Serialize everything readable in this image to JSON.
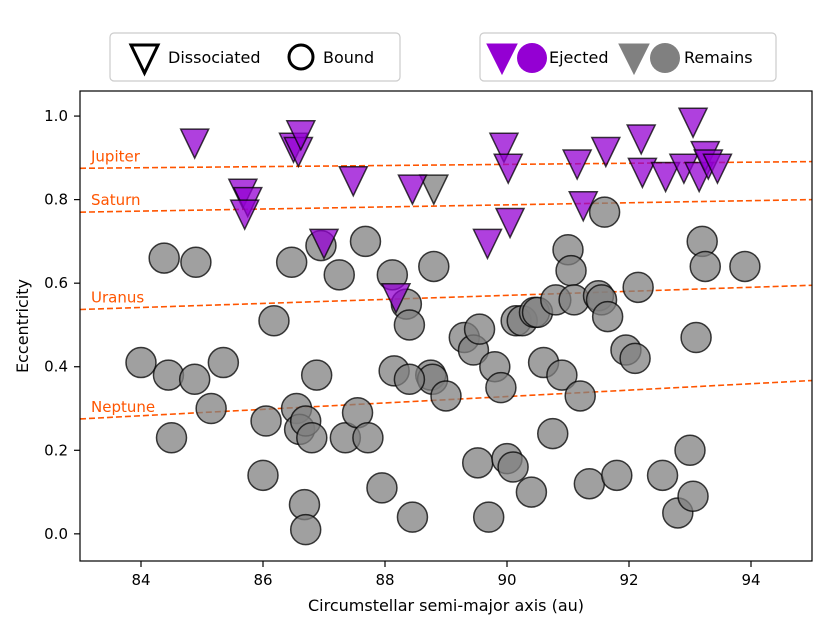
{
  "chart_data": {
    "type": "scatter",
    "xlabel": "Circumstellar semi-major axis (au)",
    "ylabel": "Eccentricity",
    "xlim": [
      83.0,
      95.0
    ],
    "ylim": [
      -0.065,
      1.06
    ],
    "xticks": [
      84,
      86,
      88,
      90,
      92,
      94
    ],
    "xtick_labels": [
      "84",
      "86",
      "88",
      "90",
      "92",
      "94"
    ],
    "yticks": [
      0.0,
      0.2,
      0.4,
      0.6,
      0.8,
      1.0
    ],
    "ytick_labels": [
      "0.0",
      "0.2",
      "0.4",
      "0.6",
      "0.8",
      "1.0"
    ],
    "grid": false,
    "colors": {
      "ejected": "#9400D3",
      "remains": "#808080",
      "planet_line": "#FF5500",
      "edge": "#000000"
    },
    "legends": [
      {
        "placement": "top-left",
        "entries": [
          {
            "marker": "triangle-down-open",
            "label": "Dissociated"
          },
          {
            "marker": "circle-open",
            "label": "Bound"
          }
        ]
      },
      {
        "placement": "top-right",
        "entries": [
          {
            "marker": "purple-pair",
            "label": "Ejected"
          },
          {
            "marker": "grey-pair",
            "label": "Remains"
          }
        ]
      }
    ],
    "planet_lines": [
      {
        "name": "Jupiter",
        "x": [
          83.0,
          95.0
        ],
        "y": [
          0.875,
          0.891
        ]
      },
      {
        "name": "Saturn",
        "x": [
          83.0,
          95.0
        ],
        "y": [
          0.77,
          0.8
        ]
      },
      {
        "name": "Uranus",
        "x": [
          83.0,
          95.0
        ],
        "y": [
          0.537,
          0.595
        ]
      },
      {
        "name": "Neptune",
        "x": [
          83.0,
          95.0
        ],
        "y": [
          0.275,
          0.367
        ]
      }
    ],
    "series": [
      {
        "name": "Bound - Remains",
        "marker": "circle",
        "color": "grey",
        "x": [
          84.0,
          84.38,
          84.45,
          84.9,
          84.88,
          84.5,
          85.15,
          85.35,
          86.0,
          86.05,
          86.18,
          86.47,
          86.55,
          86.6,
          86.7,
          86.68,
          86.7,
          86.8,
          86.88,
          86.95,
          87.25,
          87.35,
          87.55,
          87.68,
          87.72,
          87.95,
          88.12,
          88.15,
          88.35,
          88.4,
          88.75,
          88.78,
          88.8,
          88.4,
          88.45,
          89.0,
          89.3,
          89.45,
          89.52,
          89.55,
          89.7,
          89.8,
          89.9,
          90.0,
          90.1,
          90.15,
          90.25,
          90.4,
          90.45,
          90.5,
          90.6,
          90.75,
          90.8,
          90.9,
          91.0,
          91.05,
          91.1,
          91.2,
          91.35,
          91.5,
          91.55,
          91.6,
          91.65,
          91.8,
          91.95,
          92.1,
          92.15,
          92.55,
          92.8,
          93.0,
          93.05,
          93.1,
          93.2,
          93.25,
          93.9
        ],
        "y": [
          0.41,
          0.66,
          0.38,
          0.65,
          0.37,
          0.23,
          0.3,
          0.41,
          0.14,
          0.27,
          0.51,
          0.65,
          0.3,
          0.25,
          0.27,
          0.07,
          0.01,
          0.23,
          0.38,
          0.69,
          0.62,
          0.23,
          0.29,
          0.7,
          0.23,
          0.11,
          0.62,
          0.39,
          0.55,
          0.5,
          0.38,
          0.37,
          0.64,
          0.37,
          0.04,
          0.33,
          0.47,
          0.44,
          0.17,
          0.49,
          0.04,
          0.4,
          0.35,
          0.18,
          0.16,
          0.51,
          0.51,
          0.1,
          0.53,
          0.53,
          0.41,
          0.24,
          0.56,
          0.38,
          0.68,
          0.63,
          0.56,
          0.33,
          0.12,
          0.57,
          0.56,
          0.77,
          0.52,
          0.14,
          0.44,
          0.42,
          0.59,
          0.14,
          0.05,
          0.2,
          0.09,
          0.47,
          0.7,
          0.64,
          0.64
        ]
      },
      {
        "name": "Dissociated - Remains",
        "marker": "triangle-down",
        "color": "grey",
        "x": [
          88.8
        ],
        "y": [
          0.83
        ]
      },
      {
        "name": "Dissociated - Ejected",
        "marker": "triangle-down",
        "color": "purple",
        "x": [
          84.88,
          85.67,
          85.75,
          85.7,
          86.5,
          86.58,
          86.62,
          87.0,
          87.48,
          88.45,
          88.18,
          89.68,
          90.05,
          89.95,
          90.02,
          91.15,
          91.25,
          91.62,
          92.2,
          92.22,
          92.6,
          92.9,
          93.05,
          93.15,
          93.25,
          93.3,
          93.45
        ],
        "y": [
          0.94,
          0.82,
          0.8,
          0.77,
          0.93,
          0.92,
          0.96,
          0.7,
          0.85,
          0.83,
          0.57,
          0.7,
          0.75,
          0.93,
          0.88,
          0.89,
          0.79,
          0.92,
          0.95,
          0.87,
          0.86,
          0.88,
          0.99,
          0.86,
          0.91,
          0.89,
          0.88
        ]
      }
    ]
  }
}
